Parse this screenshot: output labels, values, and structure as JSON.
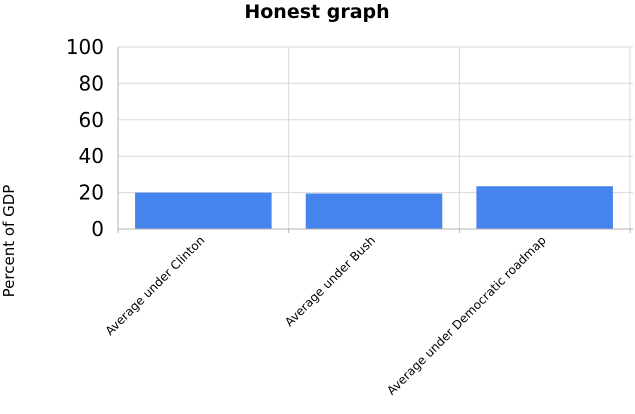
{
  "chart_data": {
    "type": "bar",
    "title": "Honest graph",
    "xlabel": "",
    "ylabel": "Percent of GDP",
    "categories": [
      "Average under Clinton",
      "Average under Bush",
      "Average under Democratic roadmap"
    ],
    "values": [
      20,
      19.5,
      23.5
    ],
    "ylim": [
      0,
      100
    ],
    "yticks": [
      0,
      20,
      40,
      60,
      80,
      100
    ],
    "grid": true,
    "legend": "none",
    "bar_color": "#4584ec"
  }
}
